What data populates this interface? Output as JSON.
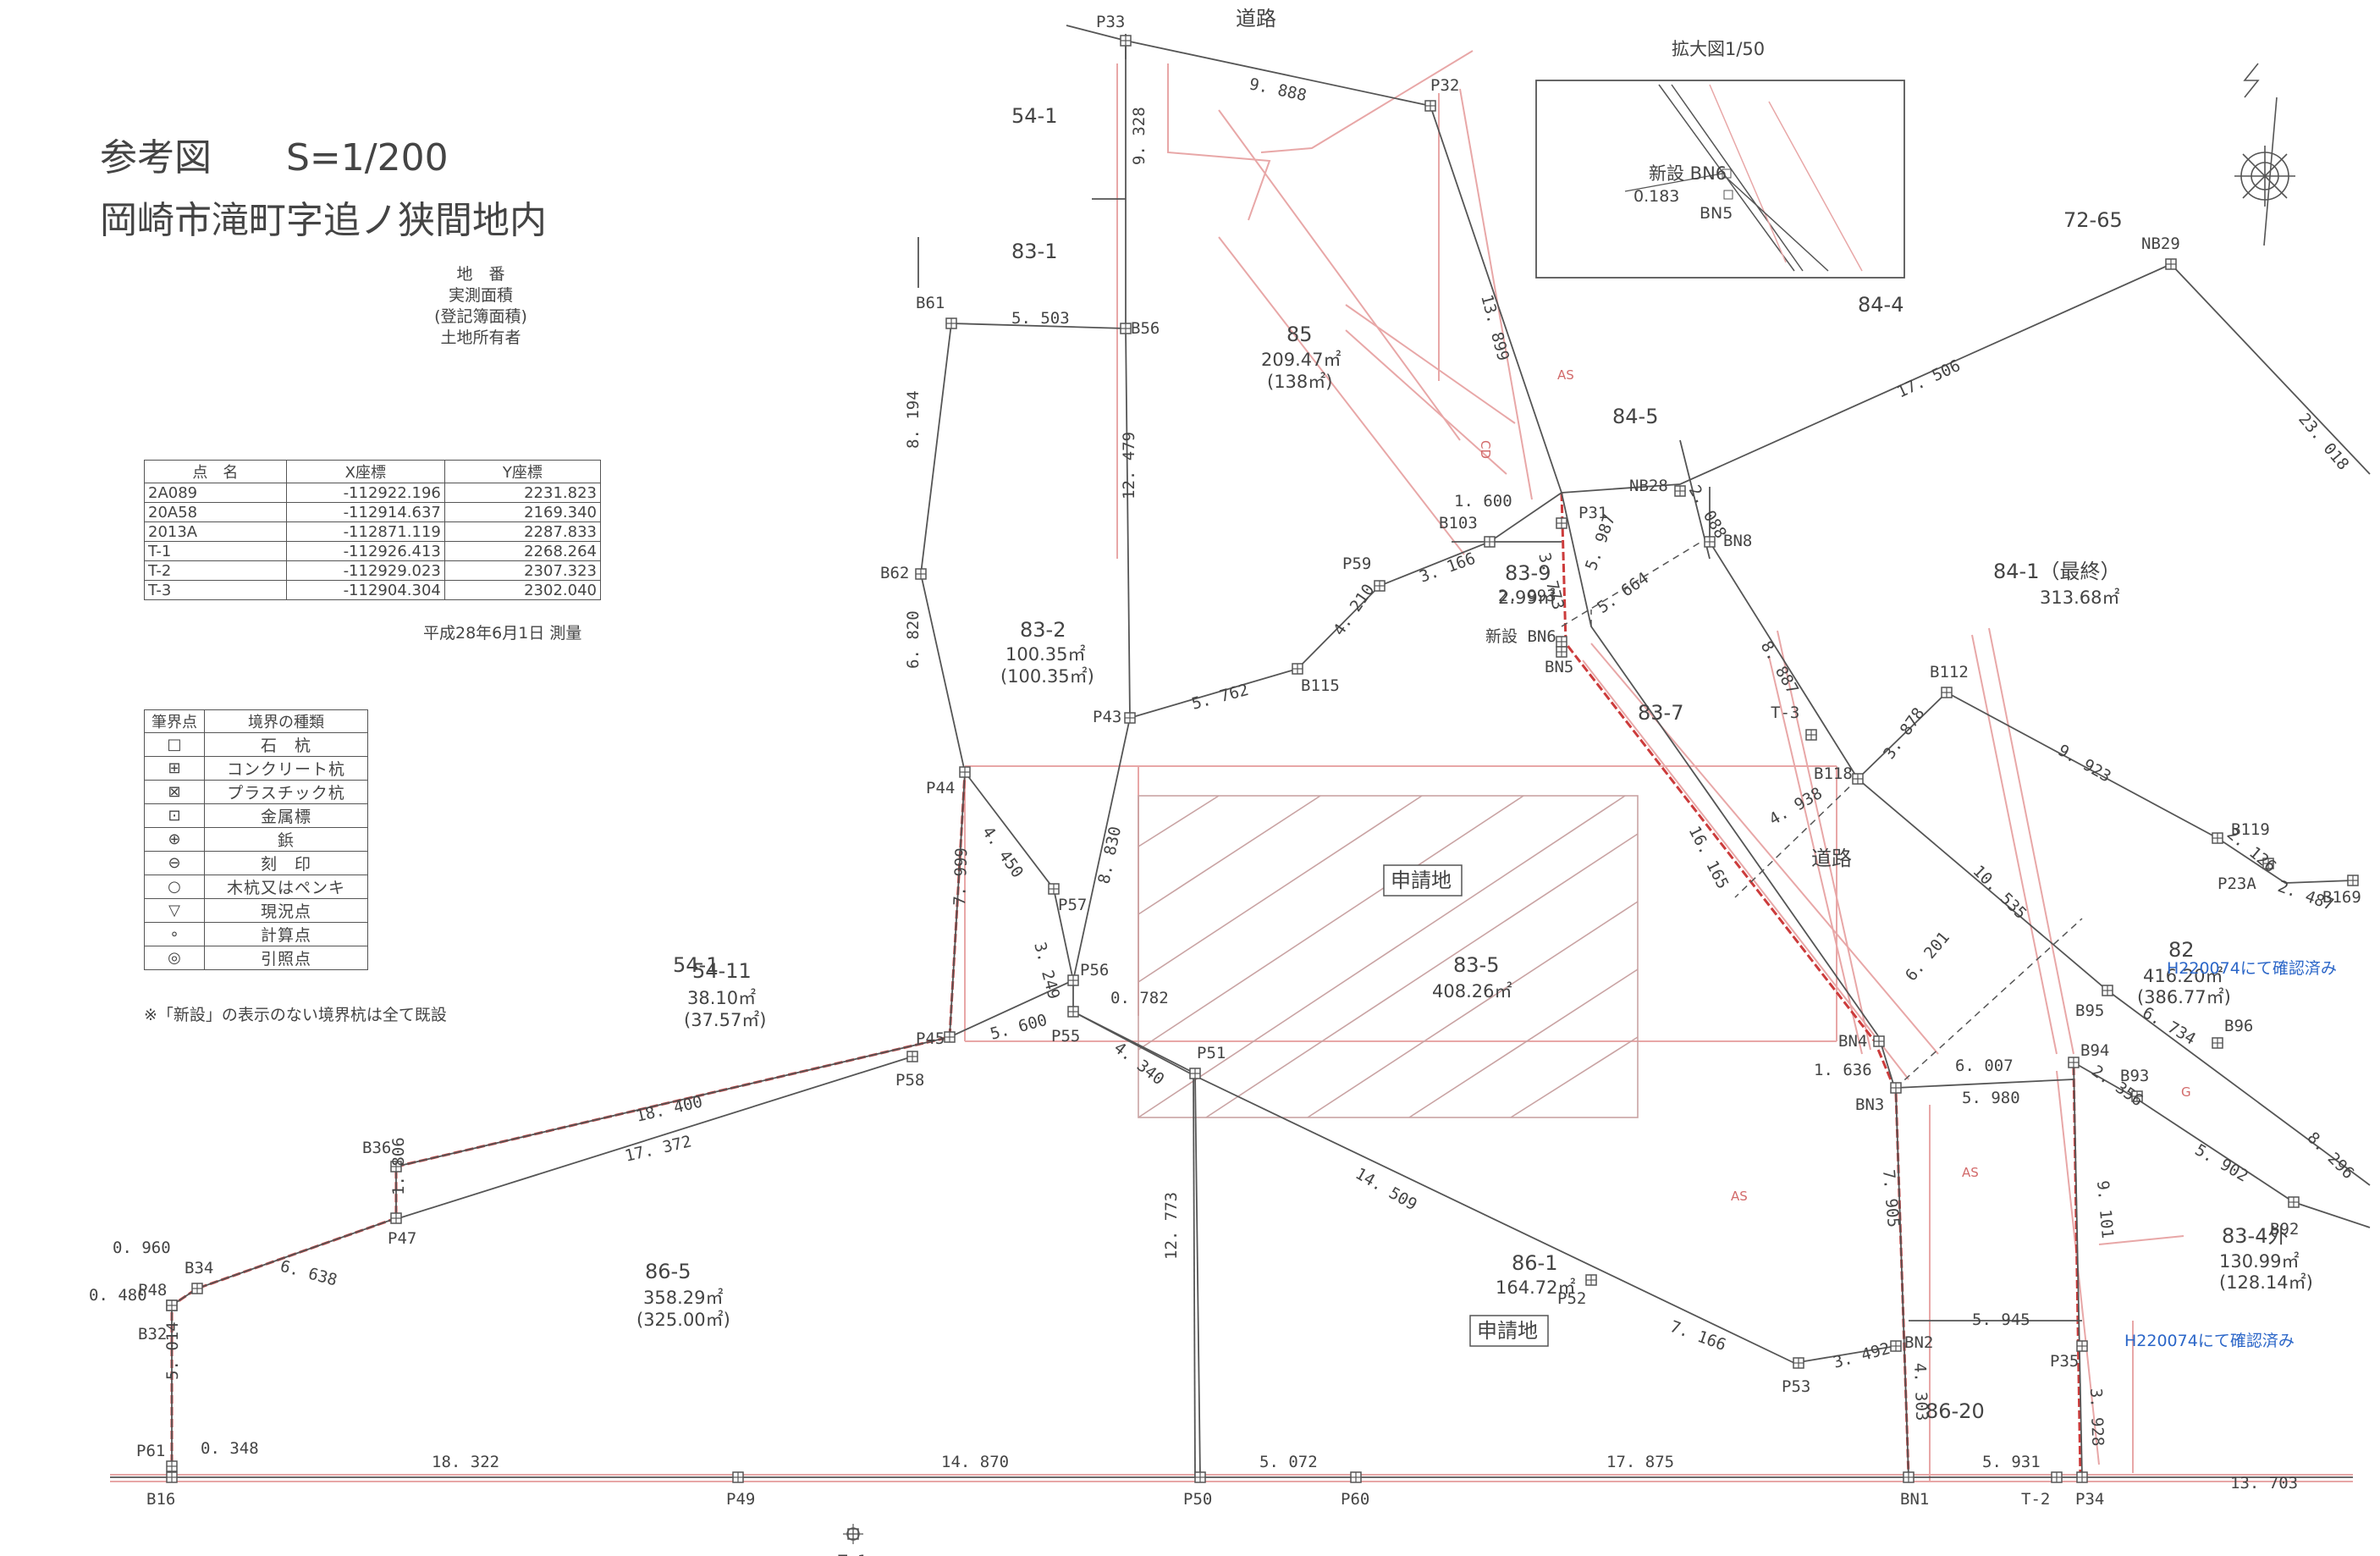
{
  "header": {
    "title": "参考図　　S=1/200",
    "location": "岡崎市滝町字追ノ狭間地内"
  },
  "legend_head": {
    "l1": "地　番",
    "l2": "実測面積",
    "l3": "(登記簿面積)",
    "l4": "土地所有者"
  },
  "coord_table": {
    "headers": [
      "点　名",
      "X座標",
      "Y座標"
    ],
    "rows": [
      {
        "name": "2A089",
        "x": "-112922.196",
        "y": "2231.823"
      },
      {
        "name": "20A58",
        "x": "-112914.637",
        "y": "2169.340"
      },
      {
        "name": "2013A",
        "x": "-112871.119",
        "y": "2287.833"
      },
      {
        "name": "T-1",
        "x": "-112926.413",
        "y": "2268.264"
      },
      {
        "name": "T-2",
        "x": "-112929.023",
        "y": "2307.323"
      },
      {
        "name": "T-3",
        "x": "-112904.304",
        "y": "2302.040"
      }
    ],
    "survey_date": "平成28年6月1日 測量"
  },
  "mark_table": {
    "headers": [
      "筆界点",
      "境界の種類"
    ],
    "rows": [
      {
        "symbol": "□",
        "type": "石　杭"
      },
      {
        "symbol": "⊞",
        "type": "コンクリート杭"
      },
      {
        "symbol": "⊠",
        "type": "プラスチック杭"
      },
      {
        "symbol": "⊡",
        "type": "金属標"
      },
      {
        "symbol": "⊕",
        "type": "鋲"
      },
      {
        "symbol": "⊖",
        "type": "刻　印"
      },
      {
        "symbol": "○",
        "type": "木杭又はペンキ"
      },
      {
        "symbol": "▽",
        "type": "現況点"
      },
      {
        "symbol": "∘",
        "type": "計算点"
      },
      {
        "symbol": "◎",
        "type": "引照点"
      }
    ],
    "note": "※「新設」の表示のない境界杭は全て既設"
  },
  "inset": {
    "title": "拡大図1/50",
    "bn6": "新設 BN6",
    "d": "0.183",
    "bn5": "BN5"
  },
  "parcels": {
    "p541": "54-1",
    "p831": "83-1",
    "p85": "85",
    "p85a": "209.47㎡",
    "p85b": "(138㎡)",
    "p844": "84-4",
    "p845": "84-5",
    "p7265": "72-65",
    "p841": "84-1（最終）",
    "p841a": "313.68㎡",
    "p839": "83-9",
    "p839a": "2.99㎡",
    "p832": "83-2",
    "p832a": "100.35㎡",
    "p832b": "(100.35㎡)",
    "p837": "83-7",
    "road1": "道路",
    "road2": "道路",
    "p835": "83-5",
    "p835a": "408.26㎡",
    "app1": "申請地",
    "app2": "申請地",
    "p5411a": "54-1",
    "p5411b": "54-11",
    "p5411c": "38.10㎡",
    "p5411d": "(37.57㎡)",
    "p865": "86-5",
    "p865a": "358.29㎡",
    "p865b": "(325.00㎡)",
    "p861": "86-1",
    "p861a": "164.72㎡",
    "p82": "82",
    "p82a": "416.20㎡",
    "p82b": "(386.77㎡)",
    "p834": "83-4外",
    "p834a": "130.99㎡",
    "p834b": "(128.14㎡)",
    "p8620": "86-20",
    "conf1": "H220074にて確認済み",
    "conf2": "H220074にて確認済み",
    "as1": "AS",
    "as2": "AS",
    "as3": "AS",
    "g1": "G",
    "cd": "CD"
  },
  "points": [
    {
      "id": "P33",
      "label": "P33"
    },
    {
      "id": "P32",
      "label": "P32"
    },
    {
      "id": "B56",
      "label": "B56"
    },
    {
      "id": "B61",
      "label": "B61"
    },
    {
      "id": "B62",
      "label": "B62"
    },
    {
      "id": "P44",
      "label": "P44"
    },
    {
      "id": "P43",
      "label": "P43"
    },
    {
      "id": "P57",
      "label": "P57"
    },
    {
      "id": "P56",
      "label": "P56"
    },
    {
      "id": "P55",
      "label": "P55"
    },
    {
      "id": "P45",
      "label": "P45"
    },
    {
      "id": "P58",
      "label": "P58"
    },
    {
      "id": "B36",
      "label": "B36"
    },
    {
      "id": "P47",
      "label": "P47"
    },
    {
      "id": "B34",
      "label": "B34"
    },
    {
      "id": "P48",
      "label": "P48"
    },
    {
      "id": "B32",
      "label": "B32"
    },
    {
      "id": "P61",
      "label": "P61"
    },
    {
      "id": "B16",
      "label": "B16"
    },
    {
      "id": "P49",
      "label": "P49"
    },
    {
      "id": "P50",
      "label": "P50"
    },
    {
      "id": "P60",
      "label": "P60"
    },
    {
      "id": "P51",
      "label": "P51"
    },
    {
      "id": "P52",
      "label": "P52"
    },
    {
      "id": "P53",
      "label": "P53"
    },
    {
      "id": "BN2",
      "label": "BN2"
    },
    {
      "id": "BN1",
      "label": "BN1"
    },
    {
      "id": "P34",
      "label": "P34"
    },
    {
      "id": "T2",
      "label": "T-2"
    },
    {
      "id": "P35",
      "label": "P35"
    },
    {
      "id": "BN3",
      "label": "BN3"
    },
    {
      "id": "BN4",
      "label": "BN4"
    },
    {
      "id": "B94",
      "label": "B94"
    },
    {
      "id": "B93",
      "label": "B93"
    },
    {
      "id": "B92",
      "label": "B92"
    },
    {
      "id": "B96",
      "label": "B96"
    },
    {
      "id": "B95",
      "label": "B95"
    },
    {
      "id": "B118",
      "label": "B118"
    },
    {
      "id": "B112",
      "label": "B112"
    },
    {
      "id": "B119",
      "label": "B119"
    },
    {
      "id": "P23A",
      "label": "P23A"
    },
    {
      "id": "B169",
      "label": "B169"
    },
    {
      "id": "NB29",
      "label": "NB29"
    },
    {
      "id": "NB28",
      "label": "NB28"
    },
    {
      "id": "BN8",
      "label": "BN8"
    },
    {
      "id": "T3",
      "label": "T-3"
    },
    {
      "id": "P31",
      "label": "P31"
    },
    {
      "id": "B103",
      "label": "B103"
    },
    {
      "id": "P59",
      "label": "P59"
    },
    {
      "id": "B115",
      "label": "B115"
    },
    {
      "id": "BN6",
      "label": "新設 BN6"
    },
    {
      "id": "BN5",
      "label": "BN5"
    },
    {
      "id": "T1",
      "label": "T-1"
    }
  ],
  "distances": {
    "d1": "9. 888",
    "d2": "9. 328",
    "d3": "5. 503",
    "d4": "8. 194",
    "d5": "6. 820",
    "d6": "12. 479",
    "d7": "13. 899",
    "d8": "1. 600",
    "d9": "3. 166",
    "d10": "4. 210",
    "d11": "5. 762",
    "d12": "3. 773",
    "d13": "5. 987",
    "d14": "5. 664",
    "d15": "2. 088",
    "d16": "17. 506",
    "d17": "23. 018",
    "d18": "8. 887",
    "d19": "3. 878",
    "d20": "9. 923",
    "d21": "2. 126",
    "d22": "2. 487",
    "d23": "4. 938",
    "d24": "16. 165",
    "d25": "10. 535",
    "d26": "6. 201",
    "d27": "6. 734",
    "d28": "8. 296",
    "d29": "4. 450",
    "d30": "8. 830",
    "d31": "7. 999",
    "d32": "3. 249",
    "d33": "0. 782",
    "d34": "5. 600",
    "d35": "18. 400",
    "d36": "17. 372",
    "d37": "1. 806",
    "d38": "6. 638",
    "d39": "0. 960",
    "d40": "0. 480",
    "d41": "5. 014",
    "d42": "0. 348",
    "d43": "18. 322",
    "d44": "14. 870",
    "d45": "5. 072",
    "d46": "17. 875",
    "d47": "5. 931",
    "d48": "13. 703",
    "d49": "4. 340",
    "d50": "14. 509",
    "d51": "7. 166",
    "d52": "3. 492",
    "d53": "12. 773",
    "d54": "6. 007",
    "d55": "5. 980",
    "d56": "1. 636",
    "d57": "7. 905",
    "d58": "2. 356",
    "d59": "5. 902",
    "d60": "9. 101",
    "d61": "5. 945",
    "d62": "4. 303",
    "d63": "3. 928",
    "d64": "2. 993"
  }
}
